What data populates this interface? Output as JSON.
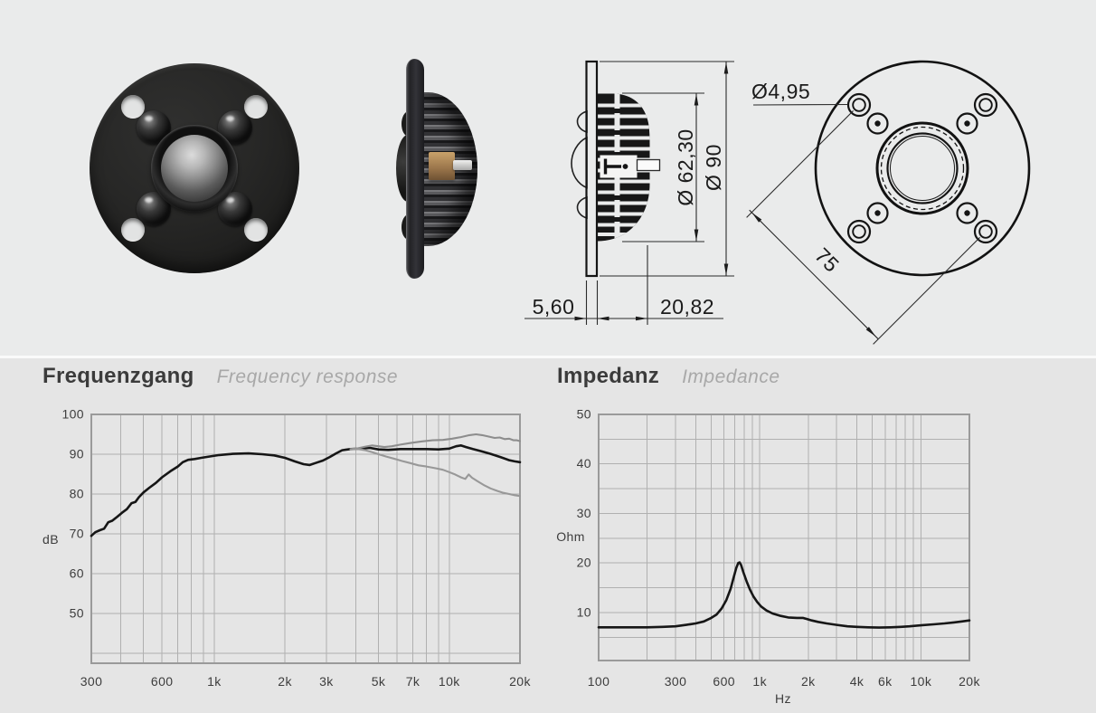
{
  "colors": {
    "bg_top": "#eaebeb",
    "bg_bottom": "#e5e5e5",
    "divider": "#fafafa",
    "title_text": "#3b3b3b",
    "subtitle_text": "#a8a8a8",
    "grid_line": "#b0b0b0",
    "curve_black": "#161616",
    "curve_gray": "#8d8d8d"
  },
  "technical_drawing": {
    "dim_hole_diameter": "Ø4,95",
    "dim_dome_diameter": "Ø 62,30",
    "dim_outer_diameter": "Ø 90",
    "dim_bolt_diagonal": "75",
    "dim_plate_thickness": "5,60",
    "dim_depth": "20,82"
  },
  "chart_data": [
    {
      "type": "line",
      "title": "Frequenzgang",
      "subtitle": "Frequency response",
      "ylabel": "dB",
      "xlabel": "",
      "x_scale": "log",
      "grid": true,
      "legend_position": "none",
      "xlim": [
        300,
        20000
      ],
      "ylim": [
        37.5,
        100
      ],
      "x_ticks": [
        {
          "v": 300,
          "label": "300"
        },
        {
          "v": 600,
          "label": "600"
        },
        {
          "v": 1000,
          "label": "1k"
        },
        {
          "v": 2000,
          "label": "2k"
        },
        {
          "v": 3000,
          "label": "3k"
        },
        {
          "v": 5000,
          "label": "5k"
        },
        {
          "v": 7000,
          "label": "7k"
        },
        {
          "v": 10000,
          "label": "10k"
        },
        {
          "v": 20000,
          "label": "20k"
        }
      ],
      "y_ticks": [
        {
          "v": 50,
          "label": "50"
        },
        {
          "v": 60,
          "label": "60"
        },
        {
          "v": 70,
          "label": "70"
        },
        {
          "v": 80,
          "label": "80"
        },
        {
          "v": 90,
          "label": "90"
        },
        {
          "v": 100,
          "label": "100"
        }
      ],
      "x_gridlines": [
        300,
        400,
        500,
        600,
        700,
        800,
        900,
        1000,
        2000,
        3000,
        4000,
        5000,
        6000,
        7000,
        8000,
        9000,
        10000,
        20000
      ],
      "y_gridlines": [
        40,
        50,
        60,
        70,
        80,
        90,
        100
      ],
      "series": [
        {
          "name": "on-axis",
          "color": "#161616",
          "width": 2.6,
          "points": [
            [
              300,
              69.5
            ],
            [
              312,
              70.4
            ],
            [
              326,
              70.9
            ],
            [
              340,
              71.3
            ],
            [
              354,
              72.9
            ],
            [
              368,
              73.3
            ],
            [
              385,
              74.2
            ],
            [
              405,
              75.3
            ],
            [
              425,
              76.2
            ],
            [
              445,
              77.7
            ],
            [
              462,
              78.0
            ],
            [
              478,
              79.2
            ],
            [
              500,
              80.4
            ],
            [
              530,
              81.6
            ],
            [
              565,
              82.8
            ],
            [
              600,
              84.2
            ],
            [
              650,
              85.7
            ],
            [
              700,
              86.9
            ],
            [
              735,
              88.0
            ],
            [
              775,
              88.6
            ],
            [
              825,
              88.8
            ],
            [
              880,
              89.1
            ],
            [
              950,
              89.4
            ],
            [
              1050,
              89.8
            ],
            [
              1200,
              90.1
            ],
            [
              1400,
              90.2
            ],
            [
              1600,
              90.0
            ],
            [
              1800,
              89.7
            ],
            [
              2000,
              89.1
            ],
            [
              2200,
              88.2
            ],
            [
              2400,
              87.5
            ],
            [
              2550,
              87.3
            ],
            [
              2700,
              87.8
            ],
            [
              2900,
              88.4
            ],
            [
              3100,
              89.3
            ],
            [
              3300,
              90.2
            ],
            [
              3500,
              91.0
            ],
            [
              3800,
              91.3
            ],
            [
              4200,
              91.4
            ],
            [
              4600,
              91.6
            ],
            [
              5000,
              91.2
            ],
            [
              5500,
              91.1
            ],
            [
              6200,
              91.3
            ],
            [
              7000,
              91.3
            ],
            [
              8000,
              91.3
            ],
            [
              9000,
              91.2
            ],
            [
              10000,
              91.4
            ],
            [
              10700,
              92.0
            ],
            [
              11200,
              92.2
            ],
            [
              11800,
              91.8
            ],
            [
              12600,
              91.3
            ],
            [
              13600,
              90.8
            ],
            [
              15000,
              90.1
            ],
            [
              16500,
              89.3
            ],
            [
              18000,
              88.5
            ],
            [
              19000,
              88.2
            ],
            [
              20000,
              88.0
            ]
          ]
        },
        {
          "name": "off-axis-rising",
          "color": "#8d8d8d",
          "width": 2.1,
          "points": [
            [
              3800,
              91.3
            ],
            [
              4100,
              91.5
            ],
            [
              4400,
              91.9
            ],
            [
              4700,
              92.2
            ],
            [
              5000,
              92.0
            ],
            [
              5300,
              91.8
            ],
            [
              5700,
              92.0
            ],
            [
              6200,
              92.4
            ],
            [
              6800,
              92.8
            ],
            [
              7600,
              93.2
            ],
            [
              8500,
              93.5
            ],
            [
              9400,
              93.6
            ],
            [
              10300,
              93.9
            ],
            [
              11200,
              94.3
            ],
            [
              12200,
              94.8
            ],
            [
              13000,
              95.0
            ],
            [
              13800,
              94.8
            ],
            [
              14800,
              94.4
            ],
            [
              15600,
              94.1
            ],
            [
              16400,
              94.2
            ],
            [
              17200,
              93.8
            ],
            [
              18000,
              93.9
            ],
            [
              18800,
              93.5
            ],
            [
              19400,
              93.5
            ],
            [
              20000,
              93.3
            ]
          ]
        },
        {
          "name": "off-axis-falling",
          "color": "#989898",
          "width": 2.1,
          "points": [
            [
              3800,
              91.2
            ],
            [
              4100,
              91.3
            ],
            [
              4400,
              91.0
            ],
            [
              4700,
              90.5
            ],
            [
              5000,
              90.0
            ],
            [
              5400,
              89.4
            ],
            [
              5800,
              88.9
            ],
            [
              6300,
              88.3
            ],
            [
              6800,
              87.8
            ],
            [
              7400,
              87.2
            ],
            [
              8000,
              86.9
            ],
            [
              8700,
              86.5
            ],
            [
              9400,
              86.1
            ],
            [
              10000,
              85.5
            ],
            [
              10600,
              84.9
            ],
            [
              11200,
              84.2
            ],
            [
              11700,
              83.8
            ],
            [
              12100,
              84.9
            ],
            [
              12500,
              84.1
            ],
            [
              13200,
              83.2
            ],
            [
              14000,
              82.3
            ],
            [
              15000,
              81.4
            ],
            [
              16000,
              80.8
            ],
            [
              17000,
              80.3
            ],
            [
              18000,
              80.0
            ],
            [
              19000,
              79.7
            ],
            [
              20000,
              79.5
            ]
          ]
        }
      ]
    },
    {
      "type": "line",
      "title": "Impedanz",
      "subtitle": "Impedance",
      "ylabel": "Ohm",
      "xlabel": "Hz",
      "x_scale": "log",
      "grid": true,
      "legend_position": "none",
      "xlim": [
        100,
        20000
      ],
      "ylim": [
        0.3,
        50
      ],
      "x_ticks": [
        {
          "v": 100,
          "label": "100"
        },
        {
          "v": 300,
          "label": "300"
        },
        {
          "v": 600,
          "label": "600"
        },
        {
          "v": 1000,
          "label": "1k"
        },
        {
          "v": 2000,
          "label": "2k"
        },
        {
          "v": 4000,
          "label": "4k"
        },
        {
          "v": 6000,
          "label": "6k"
        },
        {
          "v": 10000,
          "label": "10k"
        },
        {
          "v": 20000,
          "label": "20k"
        }
      ],
      "y_ticks": [
        {
          "v": 10,
          "label": "10"
        },
        {
          "v": 20,
          "label": "20"
        },
        {
          "v": 30,
          "label": "30"
        },
        {
          "v": 40,
          "label": "40"
        },
        {
          "v": 50,
          "label": "50"
        }
      ],
      "x_gridlines": [
        100,
        200,
        300,
        400,
        500,
        600,
        700,
        800,
        900,
        1000,
        2000,
        3000,
        4000,
        5000,
        6000,
        7000,
        8000,
        9000,
        10000,
        20000
      ],
      "y_gridlines": [
        5,
        10,
        15,
        20,
        25,
        30,
        35,
        40,
        45,
        50
      ],
      "series": [
        {
          "name": "impedance",
          "color": "#161616",
          "width": 2.6,
          "points": [
            [
              100,
              7.0
            ],
            [
              130,
              7.0
            ],
            [
              160,
              7.0
            ],
            [
              200,
              7.0
            ],
            [
              250,
              7.1
            ],
            [
              300,
              7.2
            ],
            [
              350,
              7.5
            ],
            [
              400,
              7.8
            ],
            [
              450,
              8.2
            ],
            [
              500,
              8.9
            ],
            [
              540,
              9.6
            ],
            [
              580,
              10.8
            ],
            [
              620,
              12.5
            ],
            [
              660,
              14.8
            ],
            [
              690,
              17.2
            ],
            [
              715,
              19.0
            ],
            [
              735,
              20.0
            ],
            [
              750,
              20.1
            ],
            [
              765,
              19.6
            ],
            [
              790,
              18.2
            ],
            [
              830,
              16.2
            ],
            [
              870,
              14.6
            ],
            [
              915,
              13.2
            ],
            [
              965,
              12.1
            ],
            [
              1020,
              11.2
            ],
            [
              1100,
              10.4
            ],
            [
              1200,
              9.8
            ],
            [
              1350,
              9.3
            ],
            [
              1500,
              9.0
            ],
            [
              1700,
              8.9
            ],
            [
              1850,
              8.9
            ],
            [
              1950,
              8.7
            ],
            [
              2100,
              8.4
            ],
            [
              2300,
              8.1
            ],
            [
              2600,
              7.8
            ],
            [
              3000,
              7.5
            ],
            [
              3500,
              7.2
            ],
            [
              4000,
              7.1
            ],
            [
              4700,
              7.0
            ],
            [
              5500,
              6.95
            ],
            [
              6500,
              7.0
            ],
            [
              7500,
              7.1
            ],
            [
              8500,
              7.2
            ],
            [
              10000,
              7.4
            ],
            [
              12000,
              7.6
            ],
            [
              14000,
              7.8
            ],
            [
              16000,
              8.0
            ],
            [
              18000,
              8.2
            ],
            [
              20000,
              8.4
            ]
          ]
        }
      ]
    }
  ]
}
